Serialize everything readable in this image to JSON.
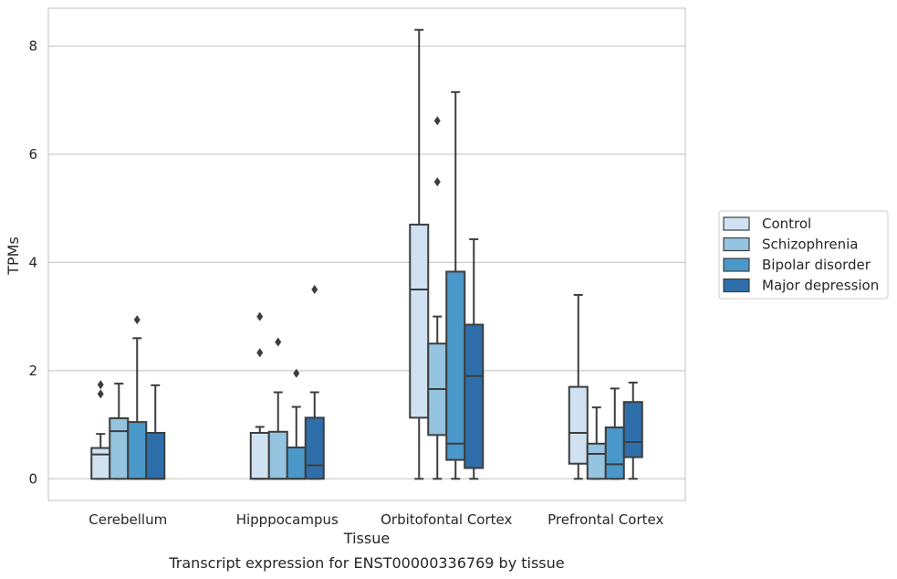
{
  "caption": "Transcript expression for ENST00000336769 by tissue",
  "chart_data": {
    "type": "box",
    "title": "",
    "xlabel": "Tissue",
    "ylabel": "TPMs",
    "ylim": [
      -0.4,
      8.7
    ],
    "yticks": [
      0,
      2,
      4,
      6,
      8
    ],
    "grid": "horizontal",
    "legend_position": "right",
    "categories": [
      "Cerebellum",
      "Hipppocampus",
      "Orbitofontal Cortex",
      "Prefrontal Cortex"
    ],
    "series": [
      {
        "name": "Control",
        "color": "#d0e1f2",
        "boxes": [
          {
            "whislo": 0,
            "q1": 0,
            "med": 0.45,
            "q3": 0.57,
            "whishi": 0.83,
            "fliers": [
              1.57,
              1.74
            ]
          },
          {
            "whislo": 0,
            "q1": 0,
            "med": 0,
            "q3": 0.85,
            "whishi": 0.96,
            "fliers": [
              2.33,
              3.0
            ]
          },
          {
            "whislo": 0,
            "q1": 1.13,
            "med": 3.5,
            "q3": 4.7,
            "whishi": 8.3,
            "fliers": []
          },
          {
            "whislo": 0,
            "q1": 0.28,
            "med": 0.85,
            "q3": 1.7,
            "whishi": 3.4,
            "fliers": []
          }
        ]
      },
      {
        "name": "Schizophrenia",
        "color": "#94c4df",
        "boxes": [
          {
            "whislo": 0,
            "q1": 0,
            "med": 0.88,
            "q3": 1.12,
            "whishi": 1.76,
            "fliers": []
          },
          {
            "whislo": 0,
            "q1": 0,
            "med": 0,
            "q3": 0.87,
            "whishi": 1.6,
            "fliers": [
              2.53
            ]
          },
          {
            "whislo": 0,
            "q1": 0.81,
            "med": 1.66,
            "q3": 2.5,
            "whishi": 3.0,
            "fliers": [
              5.49,
              6.62
            ]
          },
          {
            "whislo": 0,
            "q1": 0,
            "med": 0.46,
            "q3": 0.65,
            "whishi": 1.32,
            "fliers": []
          }
        ]
      },
      {
        "name": "Bipolar disorder",
        "color": "#4a98c9",
        "boxes": [
          {
            "whislo": 0,
            "q1": 0,
            "med": 0,
            "q3": 1.05,
            "whishi": 2.6,
            "fliers": [
              2.94
            ]
          },
          {
            "whislo": 0,
            "q1": 0,
            "med": 0,
            "q3": 0.58,
            "whishi": 1.33,
            "fliers": [
              1.95
            ]
          },
          {
            "whislo": 0,
            "q1": 0.35,
            "med": 0.65,
            "q3": 3.83,
            "whishi": 7.15,
            "fliers": []
          },
          {
            "whislo": 0,
            "q1": 0,
            "med": 0.27,
            "q3": 0.95,
            "whishi": 1.67,
            "fliers": []
          }
        ]
      },
      {
        "name": "Major depression",
        "color": "#2e6fab",
        "boxes": [
          {
            "whislo": 0,
            "q1": 0,
            "med": 0,
            "q3": 0.85,
            "whishi": 1.73,
            "fliers": []
          },
          {
            "whislo": 0,
            "q1": 0,
            "med": 0.25,
            "q3": 1.13,
            "whishi": 1.6,
            "fliers": [
              3.5
            ]
          },
          {
            "whislo": 0,
            "q1": 0.2,
            "med": 1.9,
            "q3": 2.85,
            "whishi": 4.43,
            "fliers": []
          },
          {
            "whislo": 0,
            "q1": 0.4,
            "med": 0.68,
            "q3": 1.42,
            "whishi": 1.78,
            "fliers": []
          }
        ]
      }
    ]
  }
}
